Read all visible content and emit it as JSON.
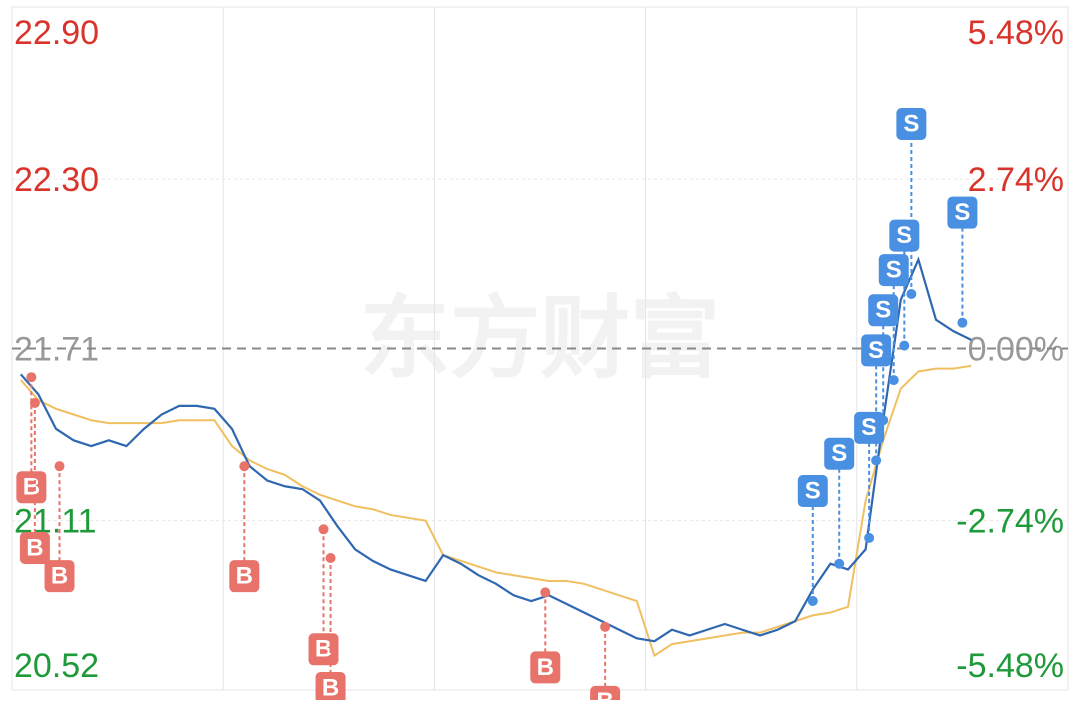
{
  "chart_data": {
    "type": "line",
    "watermark": "东方财富",
    "ylim": [
      20.52,
      22.9
    ],
    "yticks": [
      {
        "value": 20.52,
        "label": "20.52"
      },
      {
        "value": 21.11,
        "label": "21.11"
      },
      {
        "value": 21.71,
        "label": "21.71"
      },
      {
        "value": 22.3,
        "label": "22.30"
      },
      {
        "value": 22.9,
        "label": "22.90"
      }
    ],
    "y2ticks": [
      {
        "value": 20.52,
        "label": "-5.48%"
      },
      {
        "value": 21.11,
        "label": "-2.74%"
      },
      {
        "value": 21.71,
        "label": "0.00%"
      },
      {
        "value": 22.3,
        "label": "2.74%"
      },
      {
        "value": 22.9,
        "label": "5.48%"
      }
    ],
    "reference": 21.71,
    "xlim": [
      0,
      60
    ],
    "xticks": [
      12,
      24,
      36,
      48
    ],
    "series": [
      {
        "name": "price",
        "color": "#2f68b0",
        "values": [
          21.62,
          21.55,
          21.43,
          21.39,
          21.37,
          21.39,
          21.37,
          21.43,
          21.48,
          21.51,
          21.51,
          21.5,
          21.43,
          21.3,
          21.25,
          21.23,
          21.22,
          21.18,
          21.09,
          21.01,
          20.97,
          20.94,
          20.92,
          20.9,
          20.99,
          20.96,
          20.92,
          20.89,
          20.85,
          20.83,
          20.85,
          20.82,
          20.79,
          20.76,
          20.73,
          20.7,
          20.69,
          20.73,
          20.71,
          20.73,
          20.75,
          20.73,
          20.71,
          20.73,
          20.76,
          20.87,
          20.96,
          20.94,
          21.01,
          21.46,
          21.88,
          22.02,
          21.81,
          21.77,
          21.74
        ]
      },
      {
        "name": "average",
        "color": "#f0c060",
        "values": [
          21.6,
          21.53,
          21.5,
          21.48,
          21.46,
          21.45,
          21.45,
          21.45,
          21.45,
          21.46,
          21.46,
          21.46,
          21.37,
          21.32,
          21.29,
          21.27,
          21.23,
          21.2,
          21.18,
          21.16,
          21.15,
          21.13,
          21.12,
          21.11,
          20.99,
          20.97,
          20.95,
          20.93,
          20.92,
          20.91,
          20.9,
          20.9,
          20.89,
          20.87,
          20.85,
          20.83,
          20.64,
          20.68,
          20.69,
          20.7,
          20.71,
          20.72,
          20.72,
          20.74,
          20.76,
          20.78,
          20.79,
          20.81,
          21.18,
          21.39,
          21.57,
          21.63,
          21.64,
          21.64,
          21.65
        ]
      }
    ],
    "trades": [
      {
        "side": "B",
        "x": 0.6,
        "price": 21.61
      },
      {
        "side": "B",
        "x": 0.8,
        "price": 21.52
      },
      {
        "side": "B",
        "x": 2.2,
        "price": 21.3
      },
      {
        "side": "B",
        "x": 12.7,
        "price": 21.3
      },
      {
        "side": "B",
        "x": 17.2,
        "price": 21.08
      },
      {
        "side": "B",
        "x": 17.6,
        "price": 20.98
      },
      {
        "side": "B",
        "x": 29.8,
        "price": 20.86
      },
      {
        "side": "B",
        "x": 33.2,
        "price": 20.74
      },
      {
        "side": "S",
        "x": 45,
        "price": 20.83
      },
      {
        "side": "S",
        "x": 46.5,
        "price": 20.96
      },
      {
        "side": "S",
        "x": 48.2,
        "price": 21.05
      },
      {
        "side": "S",
        "x": 48.6,
        "price": 21.32
      },
      {
        "side": "S",
        "x": 49,
        "price": 21.46
      },
      {
        "side": "S",
        "x": 49.6,
        "price": 21.6
      },
      {
        "side": "S",
        "x": 50.2,
        "price": 21.72
      },
      {
        "side": "S",
        "x": 50.6,
        "price": 21.9
      },
      {
        "side": "S",
        "x": 53.5,
        "price": 21.8
      }
    ]
  }
}
